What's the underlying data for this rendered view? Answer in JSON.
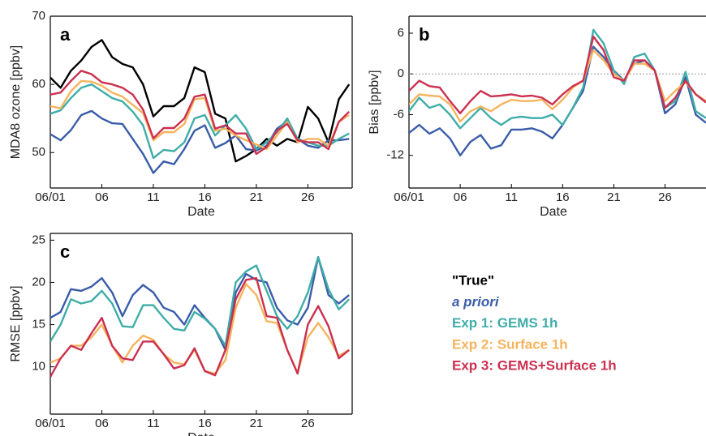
{
  "chart_data": [
    {
      "type": "line",
      "panel_label": "a",
      "xlabel": "Date",
      "ylabel": "MDA8 ozone [ppbv]",
      "x": [
        1,
        2,
        3,
        4,
        5,
        6,
        7,
        8,
        9,
        10,
        11,
        12,
        13,
        14,
        15,
        16,
        17,
        18,
        19,
        20,
        21,
        22,
        23,
        24,
        25,
        26,
        27,
        28,
        29,
        30
      ],
      "xlim": [
        1,
        30.3
      ],
      "xticks": [
        {
          "value": 1,
          "label": "06/01"
        },
        {
          "value": 6,
          "label": "06"
        },
        11,
        16,
        21,
        26
      ],
      "ylim": [
        44.8,
        70
      ],
      "yticks": [
        50,
        60,
        70
      ],
      "series": [
        {
          "name": "\"True\"",
          "color": "#000000",
          "values": [
            61,
            59.5,
            62,
            63.5,
            65.5,
            66.5,
            64,
            63,
            62.5,
            60,
            55.3,
            56.8,
            56.8,
            58,
            62.5,
            61.8,
            55.7,
            55,
            48.7,
            49.5,
            50.5,
            52,
            51,
            52,
            51.5,
            56.7,
            55,
            51.5,
            57.8,
            60
          ]
        },
        {
          "name": "a priori",
          "color": "#3a5ca8",
          "italic": true,
          "values": [
            52.7,
            51.8,
            53.3,
            55.5,
            56.1,
            55,
            54.3,
            54.2,
            52,
            49.8,
            47,
            48.7,
            48.3,
            50.5,
            53.2,
            54,
            50.7,
            51.4,
            52.5,
            50.5,
            50.3,
            51,
            53.5,
            54.6,
            52,
            51,
            50.7,
            51.8,
            51.8,
            52
          ]
        },
        {
          "name": "Exp 1: GEMS 1h",
          "color": "#3fada8",
          "values": [
            55.7,
            56.2,
            58,
            59.5,
            60,
            59,
            58,
            57.5,
            56,
            54,
            49.2,
            50.4,
            50.2,
            51.5,
            55,
            55.5,
            52.5,
            54,
            55.5,
            53.5,
            50.5,
            51.5,
            53,
            55,
            52,
            51.5,
            51,
            51,
            52,
            52.8
          ]
        },
        {
          "name": "Exp 2: Surface 1h",
          "color": "#f5b45e",
          "values": [
            56.8,
            56.5,
            59,
            60.5,
            60.4,
            59.8,
            58.8,
            58.2,
            57,
            55.8,
            51.8,
            53,
            53,
            54.2,
            57.8,
            58,
            53.2,
            53.5,
            52.5,
            51.8,
            51.2,
            50.5,
            52.5,
            54.5,
            51.5,
            52,
            52,
            51,
            54.5,
            55.5
          ]
        },
        {
          "name": "Exp 3: GEMS+Surface 1h",
          "color": "#cc3050",
          "values": [
            58.5,
            58.8,
            60.5,
            62,
            61.5,
            60.3,
            60,
            59.5,
            58.5,
            56.3,
            52.1,
            53.6,
            53.6,
            55,
            58.2,
            58.5,
            53.5,
            54,
            52.8,
            52.8,
            49.8,
            50.8,
            53.2,
            54.2,
            51.8,
            51.5,
            51.5,
            50.5,
            54.5,
            56
          ]
        }
      ]
    },
    {
      "type": "line",
      "panel_label": "b",
      "xlabel": "Date",
      "ylabel": "Bias [ppbv]",
      "x": [
        1,
        2,
        3,
        4,
        5,
        6,
        7,
        8,
        9,
        10,
        11,
        12,
        13,
        14,
        15,
        16,
        17,
        18,
        19,
        20,
        21,
        22,
        23,
        24,
        25,
        26,
        27,
        28,
        29,
        30
      ],
      "xlim": [
        1,
        30
      ],
      "xticks": [
        {
          "value": 1,
          "label": "06/01"
        },
        {
          "value": 6,
          "label": "06"
        },
        11,
        16,
        21,
        26
      ],
      "ylim": [
        -16.8,
        8.5
      ],
      "yticks": [
        6,
        0,
        -6,
        -12
      ],
      "reference_line": 0,
      "series": [
        {
          "color": "#3a5ca8",
          "values": [
            -8.7,
            -7.5,
            -8.8,
            -8,
            -9.5,
            -12,
            -10,
            -9,
            -11,
            -10.5,
            -8.2,
            -8.2,
            -8,
            -8.5,
            -9.5,
            -7.5,
            -5,
            -2.5,
            4,
            2.5,
            0.5,
            -1,
            1.5,
            2,
            0.5,
            -5.8,
            -4.5,
            -0.5,
            -6,
            -7.2
          ]
        },
        {
          "color": "#3fada8",
          "values": [
            -5.5,
            -3.5,
            -5,
            -4.5,
            -6,
            -8,
            -6.5,
            -5,
            -6.5,
            -7.5,
            -6.5,
            -6.3,
            -6.5,
            -6.5,
            -6,
            -7.5,
            -5,
            -2,
            6.5,
            4.5,
            0.5,
            -1.5,
            2.5,
            3,
            0.5,
            -5,
            -4,
            0.3,
            -5.5,
            -6.5
          ]
        },
        {
          "color": "#f5b45e",
          "values": [
            -4.5,
            -3,
            -3.2,
            -3.3,
            -4.5,
            -7,
            -5.5,
            -4.8,
            -5.5,
            -4.5,
            -3.8,
            -4,
            -4,
            -3.8,
            -5.2,
            -3.8,
            -2,
            -1,
            3.5,
            2,
            0,
            -1,
            1.5,
            1.5,
            0.5,
            -4,
            -2.5,
            -1.2,
            -3,
            -4
          ]
        },
        {
          "color": "#cc3050",
          "values": [
            -2.5,
            -1,
            -1.8,
            -2,
            -4,
            -5.8,
            -4,
            -2.5,
            -3.3,
            -3.2,
            -3,
            -3.3,
            -3.2,
            -3.5,
            -4.5,
            -3,
            -1.8,
            -1,
            5.5,
            3.5,
            -0.5,
            -1,
            2,
            2,
            0.5,
            -5,
            -3.5,
            -1,
            -3,
            -4.2
          ]
        }
      ]
    },
    {
      "type": "line",
      "panel_label": "c",
      "xlabel": "Date",
      "ylabel": "RMSE [ppbv]",
      "x": [
        1,
        2,
        3,
        4,
        5,
        6,
        7,
        8,
        9,
        10,
        11,
        12,
        13,
        14,
        15,
        16,
        17,
        18,
        19,
        20,
        21,
        22,
        23,
        24,
        25,
        26,
        27,
        28,
        29,
        30
      ],
      "xlim": [
        1,
        30.3
      ],
      "xticks": [
        {
          "value": 1,
          "label": "06/01"
        },
        {
          "value": 6,
          "label": "06"
        },
        11,
        16,
        21,
        26
      ],
      "ylim": [
        4.4,
        25.8
      ],
      "yticks": [
        10,
        15,
        20,
        25
      ],
      "series": [
        {
          "color": "#3a5ca8",
          "values": [
            15.8,
            16.5,
            19.2,
            19,
            19.5,
            20.5,
            18.8,
            16,
            18.5,
            19.7,
            18.8,
            17,
            16.5,
            15,
            17.3,
            15.8,
            14.5,
            12,
            18.8,
            21,
            20.3,
            20,
            17,
            15.5,
            15,
            17,
            23,
            18.5,
            17.5,
            18.5
          ]
        },
        {
          "color": "#3fada8",
          "values": [
            13,
            15,
            18,
            17.5,
            17.8,
            19,
            17.5,
            14.8,
            14.7,
            17.3,
            17.3,
            15.8,
            14.5,
            14.3,
            16.5,
            15.7,
            14.5,
            12.5,
            20,
            21.3,
            22,
            19,
            16,
            14.5,
            16,
            18.8,
            23,
            19.2,
            16.8,
            18
          ]
        },
        {
          "color": "#f5b45e",
          "values": [
            10.5,
            11,
            12.5,
            12.5,
            13.5,
            15,
            12.5,
            10.5,
            12.5,
            13.7,
            13.2,
            11.5,
            10.5,
            10.3,
            12,
            9.5,
            9.2,
            10.8,
            17,
            19.8,
            18.5,
            15.4,
            15.2,
            12,
            9.3,
            13.5,
            15.2,
            13.5,
            11.3,
            12
          ]
        },
        {
          "color": "#cc3050",
          "values": [
            8.8,
            11,
            12.5,
            12,
            14,
            15.8,
            12.5,
            11,
            10.8,
            13,
            13,
            11.5,
            9.8,
            10.2,
            12.2,
            9.5,
            9,
            12,
            18,
            20.3,
            20.5,
            16,
            15.8,
            12,
            9.2,
            15,
            17.2,
            14.8,
            11,
            12
          ]
        }
      ]
    }
  ]
}
